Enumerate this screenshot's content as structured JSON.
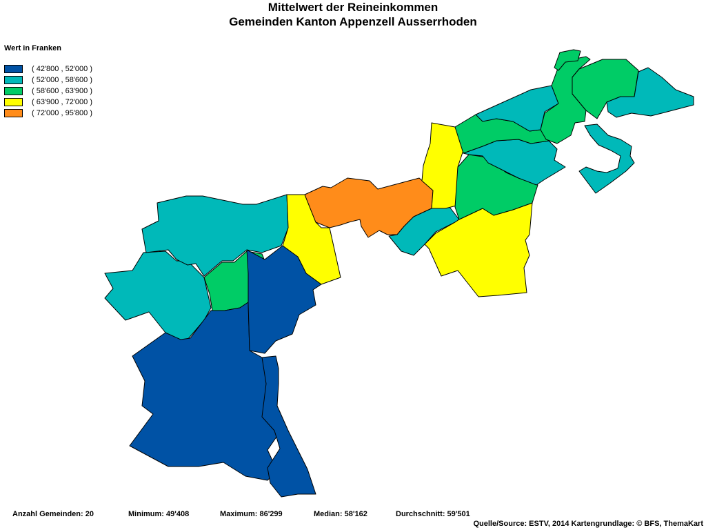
{
  "title": {
    "line1": "Mittelwert der Reineinkommen",
    "line2": "Gemeinden Kanton Appenzell Ausserrhoden"
  },
  "legend": {
    "title": "Wert in Franken",
    "classes": [
      {
        "label": "( 42'800 , 52'000 )",
        "color": "#0052A5"
      },
      {
        "label": "( 52'000 , 58'600 )",
        "color": "#00B9B9"
      },
      {
        "label": "( 58'600 , 63'900 )",
        "color": "#00CC66"
      },
      {
        "label": "( 63'900 , 72'000 )",
        "color": "#FFFF00"
      },
      {
        "label": "( 72'000 , 95'800 )",
        "color": "#FF8C1A"
      }
    ]
  },
  "stats": {
    "count": "Anzahl Gemeinden: 20",
    "min": "Minimum: 49'408",
    "max": "Maximum: 86'299",
    "median": "Median: 58'162",
    "mean": "Durchschnitt: 59'501"
  },
  "source": "Quelle/Source: ESTV, 2014 Kartengrundlage: © BFS, ThemaKart",
  "map": {
    "border_color": "#000000"
  }
}
